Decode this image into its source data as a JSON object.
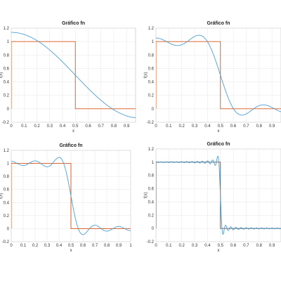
{
  "chart_data": [
    {
      "type": "line",
      "title": "Gráfico fn",
      "xlabel": "x",
      "ylabel": "f(x)",
      "xlim": [
        0,
        0.97
      ],
      "ylim": [
        -0.2,
        1.2
      ],
      "xticks": [
        "0",
        "0.1",
        "0.2",
        "0.3",
        "0.4",
        "0.5",
        "0.6",
        "0.7",
        "0.8",
        "0.9"
      ],
      "xtick_values": [
        0,
        0.1,
        0.2,
        0.3,
        0.4,
        0.5,
        0.6,
        0.7,
        0.8,
        0.9
      ],
      "yticks": [
        "-0.2",
        "0",
        "0.2",
        "0.4",
        "0.6",
        "0.8",
        "1",
        "1.2"
      ],
      "ytick_values": [
        -0.2,
        0,
        0.2,
        0.4,
        0.6,
        0.8,
        1,
        1.2
      ],
      "grid": true,
      "terms": 1,
      "series": [
        {
          "kind": "step",
          "step_at": 0.5,
          "high": 1,
          "low": 0,
          "color": "#d95319"
        },
        {
          "kind": "fourier",
          "color": "#4d9fd6"
        }
      ]
    },
    {
      "type": "line",
      "title": "Gráfico fn",
      "xlabel": "x",
      "ylabel": "f(x)",
      "xlim": [
        0,
        0.97
      ],
      "ylim": [
        -0.2,
        1.2
      ],
      "xticks": [
        "0",
        "0.1",
        "0.2",
        "0.3",
        "0.4",
        "0.5",
        "0.6",
        "0.7",
        "0.8",
        "0.9"
      ],
      "xtick_values": [
        0,
        0.1,
        0.2,
        0.3,
        0.4,
        0.5,
        0.6,
        0.7,
        0.8,
        0.9
      ],
      "yticks": [
        "-0.2",
        "0",
        "0.2",
        "0.4",
        "0.6",
        "0.8",
        "1",
        "1.2"
      ],
      "ytick_values": [
        -0.2,
        0,
        0.2,
        0.4,
        0.6,
        0.8,
        1,
        1.2
      ],
      "grid": true,
      "terms": 3,
      "series": [
        {
          "kind": "step",
          "step_at": 0.5,
          "high": 1,
          "low": 0,
          "color": "#d95319"
        },
        {
          "kind": "fourier",
          "color": "#4d9fd6"
        }
      ]
    },
    {
      "type": "line",
      "title": "Gráfico fn",
      "xlabel": "x",
      "ylabel": "f(x)",
      "xlim": [
        0,
        1
      ],
      "ylim": [
        -0.2,
        1.2
      ],
      "xticks": [
        "0",
        "0.1",
        "0.2",
        "0.3",
        "0.4",
        "0.5",
        "0.6",
        "0.7",
        "0.8",
        "0.9",
        "1"
      ],
      "xtick_values": [
        0,
        0.1,
        0.2,
        0.3,
        0.4,
        0.5,
        0.6,
        0.7,
        0.8,
        0.9,
        1
      ],
      "yticks": [
        "-0.2",
        "0",
        "0.2",
        "0.4",
        "0.6",
        "0.8",
        "1",
        "1.2"
      ],
      "ytick_values": [
        -0.2,
        0,
        0.2,
        0.4,
        0.6,
        0.8,
        1,
        1.2
      ],
      "grid": true,
      "terms": 5,
      "series": [
        {
          "kind": "step",
          "step_at": 0.5,
          "high": 1,
          "low": 0,
          "color": "#d95319"
        },
        {
          "kind": "fourier",
          "color": "#4d9fd6"
        }
      ]
    },
    {
      "type": "line",
      "title": "Gráfico fn",
      "xlabel": "x",
      "ylabel": "f(x)",
      "xlim": [
        0,
        0.97
      ],
      "ylim": [
        -0.2,
        1.2
      ],
      "xticks": [
        "0",
        "0.1",
        "0.2",
        "0.3",
        "0.4",
        "0.5",
        "0.6",
        "0.7",
        "0.8",
        "0.9"
      ],
      "xtick_values": [
        0,
        0.1,
        0.2,
        0.3,
        0.4,
        0.5,
        0.6,
        0.7,
        0.8,
        0.9
      ],
      "yticks": [
        "-0.2",
        "0",
        "0.2",
        "0.4",
        "0.6",
        "0.8",
        "1",
        "1.2"
      ],
      "ytick_values": [
        -0.2,
        0,
        0.2,
        0.4,
        0.6,
        0.8,
        1,
        1.2
      ],
      "grid": true,
      "terms": 25,
      "series": [
        {
          "kind": "step",
          "step_at": 0.5,
          "high": 1,
          "low": 0,
          "color": "#555555"
        },
        {
          "kind": "fourier",
          "color": "#4d9fd6"
        }
      ]
    }
  ]
}
